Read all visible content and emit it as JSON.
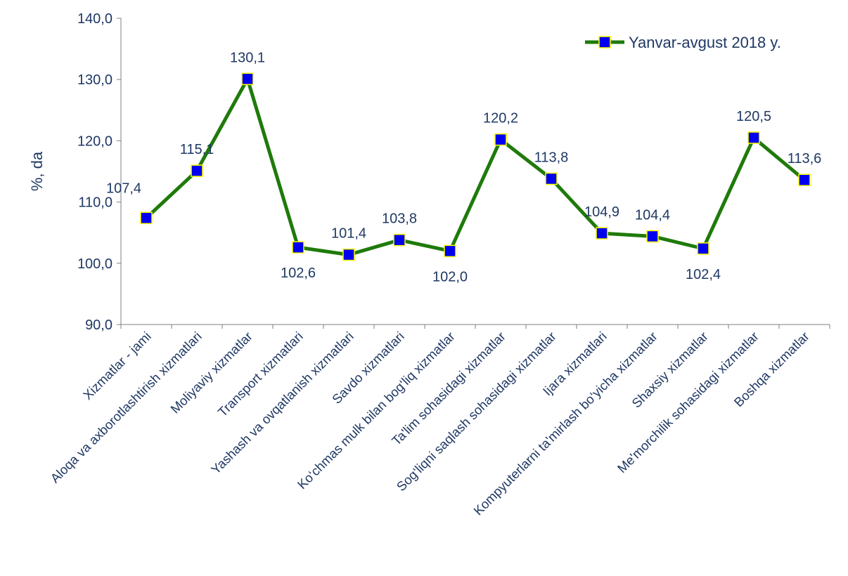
{
  "chart_data": {
    "type": "line",
    "title": "",
    "xlabel": "",
    "ylabel": "%, da",
    "ylim": [
      90,
      140
    ],
    "yticks": [
      90,
      100,
      110,
      120,
      130,
      140
    ],
    "ytick_labels": [
      "90,0",
      "100,0",
      "110,0",
      "120,0",
      "130,0",
      "140,0"
    ],
    "categories": [
      "Xizmatlar - jami",
      "Aloqa va axborotlashtirish xizmatlari",
      "Moliyaviy xizmatlar",
      "Transport xizmatlari",
      "Yashash va ovqatlanish xizmatlari",
      "Savdo xizmatlari",
      "Ko‘chmas mulk bilan bog‘liq xizmatlar",
      "Ta'lim sohasidagi xizmatlar",
      "Sog‘liqni saqlash sohasidagi xizmatlar",
      "Ijara xizmatlari",
      "Kompyuterlarni ta'mirlash bo‘yicha xizmatlar",
      "Shaxsiy xizmatlar",
      "Me'morchilik sohasidagi xizmatlar",
      "Boshqa xizmatlar"
    ],
    "series": [
      {
        "name": "Yanvar-avgust 2018 y.",
        "values": [
          107.4,
          115.1,
          130.1,
          102.6,
          101.4,
          103.8,
          102.0,
          120.2,
          113.8,
          104.9,
          104.4,
          102.4,
          120.5,
          113.6
        ],
        "value_labels": [
          "107,4",
          "115,1",
          "130,1",
          "102,6",
          "101,4",
          "103,8",
          "102,0",
          "120,2",
          "113,8",
          "104,9",
          "104,4",
          "102,4",
          "120,5",
          "113,6"
        ],
        "line_color": "#1f7a0a",
        "marker_color": "#0000ee",
        "marker_border": "#ffff00"
      }
    ],
    "label_positions": [
      "left",
      "above",
      "above",
      "below",
      "above",
      "above",
      "below",
      "above",
      "above",
      "above",
      "above",
      "below",
      "above",
      "above"
    ],
    "grid": false,
    "legend": "top-right",
    "text_color": "#1f3864",
    "axis_color": "#7f7f7f"
  }
}
